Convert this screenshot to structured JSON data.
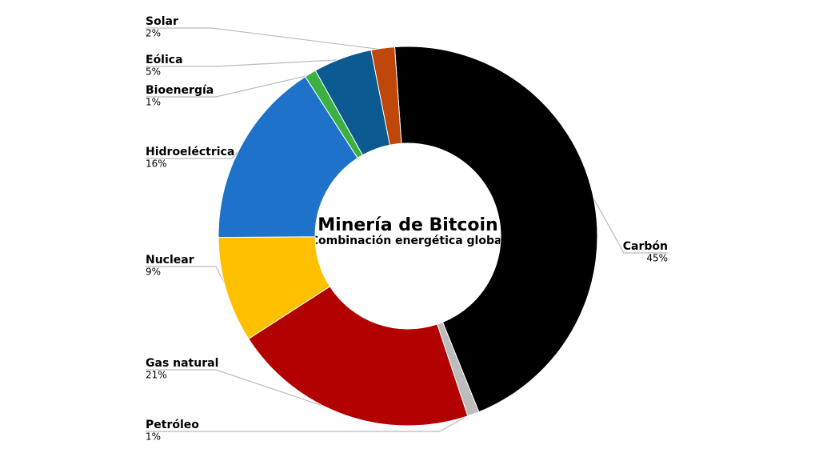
{
  "chart_data": {
    "type": "donut",
    "title": "Minería de Bitcoin",
    "subtitle": "Combinación energética global",
    "categories": [
      "Carbón",
      "Petróleo",
      "Gas natural",
      "Nuclear",
      "Hidroeléctrica",
      "Bioenergía",
      "Eólica",
      "Solar"
    ],
    "values": [
      45,
      1,
      21,
      9,
      16,
      1,
      5,
      2
    ],
    "value_labels": [
      "45%",
      "1%",
      "21%",
      "9%",
      "16%",
      "1%",
      "5%",
      "2%"
    ],
    "colors": [
      "#000000",
      "#bdbdbd",
      "#b30000",
      "#ffc000",
      "#1f72c9",
      "#3cb043",
      "#0b5a91",
      "#c0470a"
    ]
  }
}
